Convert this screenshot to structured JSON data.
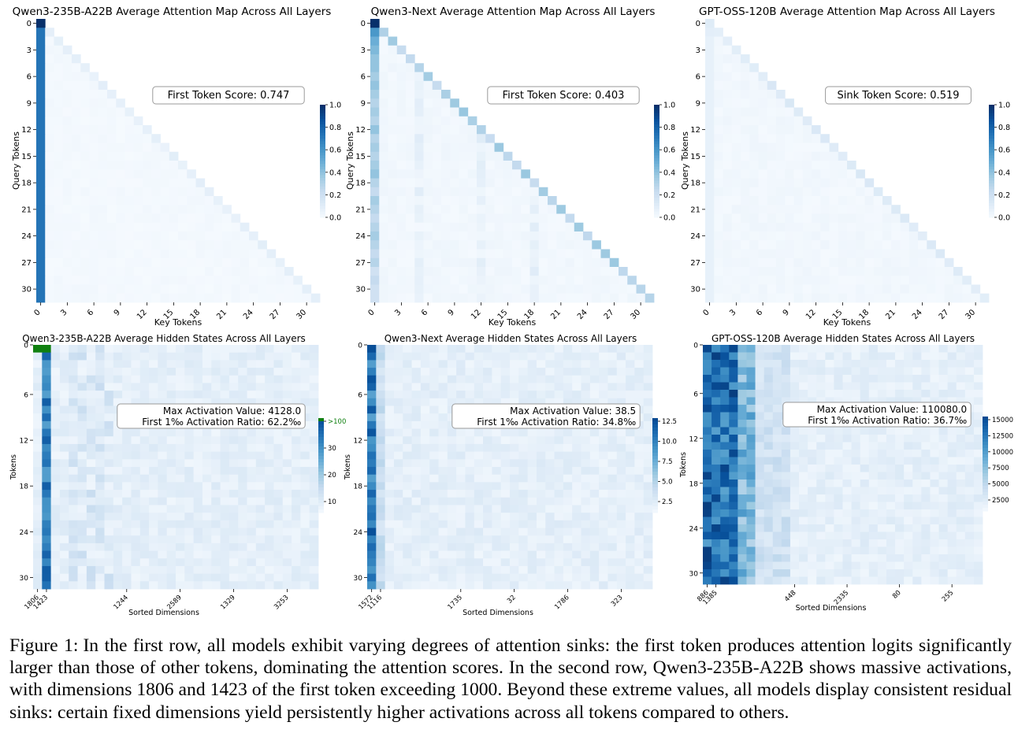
{
  "figure": {
    "label": "Figure 1:",
    "caption": "In the first row, all models exhibit varying degrees of attention sinks: the first token produces attention logits significantly larger than those of other tokens, dominating the attention scores. In the second row, Qwen3-235B-A22B shows massive activations, with dimensions 1806 and 1423 of the first token exceeding 1000. Beyond these extreme values, all models display consistent residual sinks: certain fixed dimensions yield persistently higher activations across all tokens compared to others."
  },
  "chart_data": [
    {
      "type": "heatmap",
      "title": "Qwen3-235B-A22B Average Attention Map Across All Layers",
      "xlabel": "Key Tokens",
      "ylabel": "Query Tokens",
      "n_tokens": 32,
      "x_ticks": [
        "0",
        "3",
        "6",
        "9",
        "12",
        "15",
        "18",
        "21",
        "24",
        "27",
        "30"
      ],
      "y_ticks": [
        "0",
        "3",
        "6",
        "9",
        "12",
        "15",
        "18",
        "21",
        "24",
        "27",
        "30"
      ],
      "colorbar": {
        "range": [
          0,
          1.0
        ],
        "ticks": [
          "1.0",
          "0.8",
          "0.6",
          "0.4",
          "0.2",
          "0.0"
        ]
      },
      "annotation": [
        "First Token Score: 0.747"
      ],
      "first_token_score": 0.747,
      "first_column": [
        1.0,
        0.74,
        0.74,
        0.74,
        0.74,
        0.74,
        0.74,
        0.74,
        0.74,
        0.74,
        0.74,
        0.74,
        0.74,
        0.74,
        0.74,
        0.74,
        0.74,
        0.74,
        0.74,
        0.74,
        0.74,
        0.74,
        0.74,
        0.74,
        0.74,
        0.74,
        0.74,
        0.74,
        0.74,
        0.74,
        0.74,
        0.74
      ],
      "diagonal": 0.08,
      "background": 0.02
    },
    {
      "type": "heatmap",
      "title": "Qwen3-Next Average Attention Map Across All Layers",
      "xlabel": "Key Tokens",
      "ylabel": "Query Tokens",
      "n_tokens": 32,
      "x_ticks": [
        "0",
        "3",
        "6",
        "9",
        "12",
        "15",
        "18",
        "21",
        "24",
        "27",
        "30"
      ],
      "y_ticks": [
        "0",
        "3",
        "6",
        "9",
        "12",
        "15",
        "18",
        "21",
        "24",
        "27",
        "30"
      ],
      "colorbar": {
        "range": [
          0,
          1.0
        ],
        "ticks": [
          "1.0",
          "0.8",
          "0.6",
          "0.4",
          "0.2",
          "0.0"
        ]
      },
      "annotation": [
        "First Token Score: 0.403"
      ],
      "first_token_score": 0.403,
      "first_column": [
        1.0,
        0.6,
        0.5,
        0.45,
        0.4,
        0.4,
        0.35,
        0.4,
        0.35,
        0.3,
        0.35,
        0.3,
        0.4,
        0.3,
        0.35,
        0.3,
        0.35,
        0.4,
        0.3,
        0.25,
        0.35,
        0.3,
        0.25,
        0.3,
        0.35,
        0.3,
        0.25,
        0.3,
        0.2,
        0.25,
        0.2,
        0.2
      ],
      "diagonal": 0.3,
      "background": 0.03
    },
    {
      "type": "heatmap",
      "title": "GPT-OSS-120B Average Attention Map Across All Layers",
      "xlabel": "Key Tokens",
      "ylabel": "Query Tokens",
      "n_tokens": 32,
      "x_ticks": [
        "0",
        "3",
        "6",
        "9",
        "12",
        "15",
        "18",
        "21",
        "24",
        "27",
        "30"
      ],
      "y_ticks": [
        "0",
        "3",
        "6",
        "9",
        "12",
        "15",
        "18",
        "21",
        "24",
        "27",
        "30"
      ],
      "colorbar": {
        "range": [
          0,
          1.0
        ],
        "ticks": [
          "1.0",
          "0.8",
          "0.6",
          "0.4",
          "0.2",
          "0.0"
        ]
      },
      "annotation": [
        "Sink Token Score: 0.519"
      ],
      "first_token_score": 0.519,
      "first_column": [
        0.12,
        0.1,
        0.08,
        0.08,
        0.08,
        0.08,
        0.08,
        0.08,
        0.08,
        0.08,
        0.08,
        0.08,
        0.08,
        0.08,
        0.08,
        0.08,
        0.08,
        0.08,
        0.08,
        0.08,
        0.08,
        0.08,
        0.08,
        0.08,
        0.08,
        0.08,
        0.08,
        0.08,
        0.08,
        0.08,
        0.08,
        0.08
      ],
      "diagonal": 0.12,
      "background": 0.03
    },
    {
      "type": "heatmap",
      "title": "Qwen3-235B-A22B Average Hidden States Across All Layers",
      "xlabel": "Sorted Dimensions",
      "ylabel": "Tokens",
      "n_tokens": 32,
      "n_dims": 32,
      "x_ticks": [
        "1806",
        "1423",
        "1244",
        "2589",
        "1329",
        "3253"
      ],
      "y_ticks": [
        "0",
        "6",
        "12",
        "18",
        "24",
        "30"
      ],
      "colorbar": {
        "range": [
          0,
          40
        ],
        "ticks": [
          ">100",
          "30",
          "20",
          "10"
        ],
        "overflow_color": "#108010"
      },
      "annotation": [
        "Max Activation Value: 4128.0",
        "First 1‰ Activation Ratio: 62.2‰"
      ],
      "max_activation": 4128.0,
      "first_permille_ratio": 62.2
    },
    {
      "type": "heatmap",
      "title": "Qwen3-Next Average Hidden States Across All Layers",
      "xlabel": "Sorted Dimensions",
      "ylabel": "Tokens",
      "n_tokens": 32,
      "n_dims": 32,
      "x_ticks": [
        "1572",
        "1116",
        "1735",
        "32",
        "1786",
        "323"
      ],
      "y_ticks": [
        "0",
        "6",
        "12",
        "18",
        "24",
        "30"
      ],
      "colorbar": {
        "range": [
          0,
          15
        ],
        "ticks": [
          "12.5",
          "10.0",
          "7.5",
          "5.0",
          "2.5"
        ]
      },
      "annotation": [
        "Max Activation Value: 38.5",
        "First 1‰ Activation Ratio: 34.8‰"
      ],
      "max_activation": 38.5,
      "first_permille_ratio": 34.8
    },
    {
      "type": "heatmap",
      "title": "GPT-OSS-120B Average Hidden States Across All Layers",
      "xlabel": "Sorted Dimensions",
      "ylabel": "Tokens",
      "n_tokens": 32,
      "n_dims": 32,
      "x_ticks": [
        "886",
        "1385",
        "448",
        "2335",
        "80",
        "255"
      ],
      "y_ticks": [
        "0",
        "6",
        "12",
        "18",
        "24",
        "30"
      ],
      "colorbar": {
        "range": [
          0,
          17000
        ],
        "ticks": [
          "15000",
          "12500",
          "10000",
          "7500",
          "5000",
          "2500"
        ]
      },
      "annotation": [
        "Max Activation Value: 110080.0",
        "First 1‰ Activation Ratio: 36.7‰"
      ],
      "max_activation": 110080.0,
      "first_permille_ratio": 36.7
    }
  ]
}
